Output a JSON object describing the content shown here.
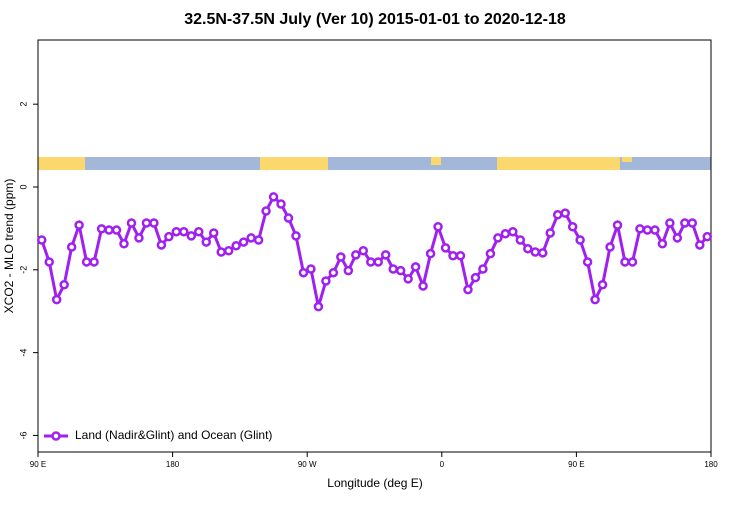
{
  "chart_data": {
    "type": "line",
    "title": "32.5N-37.5N July (Ver 10)   2015-01-01 to 2020-12-18",
    "x_label": "Longitude (deg E)",
    "y_label": "XCO2 - MLO trend (ppm)",
    "x": [
      92.5,
      97.5,
      102.5,
      107.5,
      112.5,
      117.5,
      122.5,
      127.5,
      132.5,
      137.5,
      142.5,
      147.5,
      152.5,
      157.5,
      162.5,
      167.5,
      172.5,
      177.5,
      182.5,
      187.5,
      192.5,
      197.5,
      202.5,
      207.5,
      212.5,
      217.5,
      222.5,
      227.5,
      232.5,
      237.5,
      242.5,
      247.5,
      252.5,
      257.5,
      262.5,
      267.5,
      272.5,
      277.5,
      282.5,
      287.5,
      292.5,
      297.5,
      302.5,
      307.5,
      312.5,
      317.5,
      322.5,
      327.5,
      332.5,
      337.5,
      342.5,
      347.5,
      352.5,
      357.5,
      362.5,
      367.5,
      372.5,
      377.5,
      382.5,
      387.5,
      392.5,
      397.5,
      402.5,
      407.5,
      412.5,
      417.5,
      422.5,
      427.5,
      432.5,
      437.5,
      442.5,
      447.5,
      452.5,
      457.5,
      462.5,
      467.5,
      472.5,
      477.5,
      482.5,
      487.5,
      492.5,
      497.5,
      502.5,
      507.5,
      512.5,
      517.5,
      522.5,
      527.5,
      532.5,
      537.5
    ],
    "series": [
      {
        "name": "Land (Nadir&Glint) and Ocean (Glint)",
        "color": "#a020f0",
        "values": [
          -1.28,
          -1.81,
          -2.72,
          -2.36,
          -1.45,
          -0.92,
          -1.81,
          -1.81,
          -1.01,
          -1.04,
          -1.04,
          -1.37,
          -0.87,
          -1.23,
          -0.87,
          -0.87,
          -1.4,
          -1.2,
          -1.08,
          -1.08,
          -1.18,
          -1.08,
          -1.33,
          -1.11,
          -1.57,
          -1.54,
          -1.42,
          -1.33,
          -1.23,
          -1.28,
          -0.58,
          -0.24,
          -0.41,
          -0.75,
          -1.18,
          -2.07,
          -1.98,
          -2.89,
          -2.27,
          -2.07,
          -1.69,
          -2.02,
          -1.64,
          -1.54,
          -1.81,
          -1.81,
          -1.64,
          -1.98,
          -2.02,
          -2.22,
          -1.93,
          -2.39,
          -1.61,
          -0.96,
          -1.47,
          -1.66,
          -1.66,
          -2.48,
          -2.19,
          -1.98,
          -1.61,
          -1.23,
          -1.13,
          -1.08,
          -1.28,
          -1.49,
          -1.57,
          -1.59,
          -1.11,
          -0.67,
          -0.63,
          -0.96,
          -1.28,
          -1.81,
          -2.72,
          -2.36,
          -1.45,
          -0.92,
          -1.81,
          -1.81,
          -1.01,
          -1.04,
          -1.04,
          -1.37,
          -0.87,
          -1.23,
          -0.87,
          -0.87,
          -1.4,
          -1.2
        ]
      }
    ],
    "xlim": [
      90,
      540
    ],
    "xticks": [
      {
        "value": 90,
        "label": "90 E"
      },
      180,
      {
        "value": 270,
        "label": "90 W"
      },
      {
        "value": 360,
        "label": "0"
      },
      {
        "value": 450,
        "label": "90 E"
      },
      {
        "value": 540,
        "label": "180"
      }
    ],
    "ylim": [
      -6.4,
      3.55
    ],
    "yticks": [
      -6,
      -4,
      -2,
      0,
      2
    ],
    "legend": "bottom-left"
  }
}
